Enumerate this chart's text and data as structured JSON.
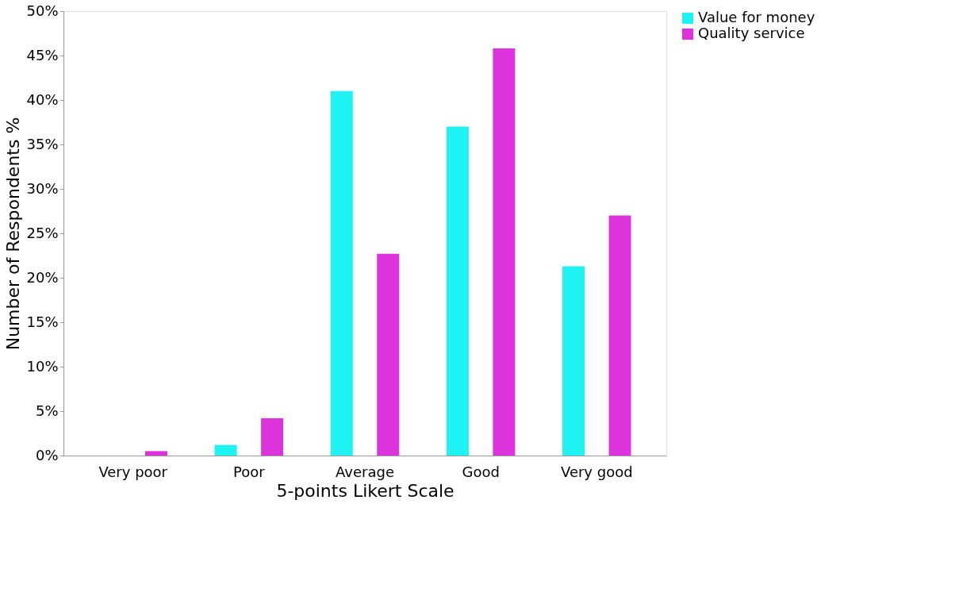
{
  "chart_data": {
    "type": "bar",
    "xlabel": "5-points Likert Scale",
    "ylabel": "Number of Respondents %",
    "categories": [
      "Very poor",
      "Poor",
      "Average",
      "Good",
      "Very good"
    ],
    "series": [
      {
        "name": "Value for money",
        "color": "#1ff2f2",
        "values": [
          0,
          1.2,
          41,
          37,
          21.3
        ]
      },
      {
        "name": "Quality service",
        "color": "#dd33dd",
        "values": [
          0.5,
          4.2,
          22.7,
          45.8,
          27
        ]
      }
    ],
    "ylim": [
      0,
      50
    ],
    "yticks": [
      {
        "value": 0,
        "label": "0%"
      },
      {
        "value": 5,
        "label": "5%"
      },
      {
        "value": 10,
        "label": "10%"
      },
      {
        "value": 15,
        "label": "15%"
      },
      {
        "value": 20,
        "label": "20%"
      },
      {
        "value": 25,
        "label": "25%"
      },
      {
        "value": 30,
        "label": "30%"
      },
      {
        "value": 35,
        "label": "35%"
      },
      {
        "value": 40,
        "label": "40%"
      },
      {
        "value": 45,
        "label": "45%"
      },
      {
        "value": 50,
        "label": "50%"
      }
    ],
    "grid": false,
    "legend": "right"
  }
}
